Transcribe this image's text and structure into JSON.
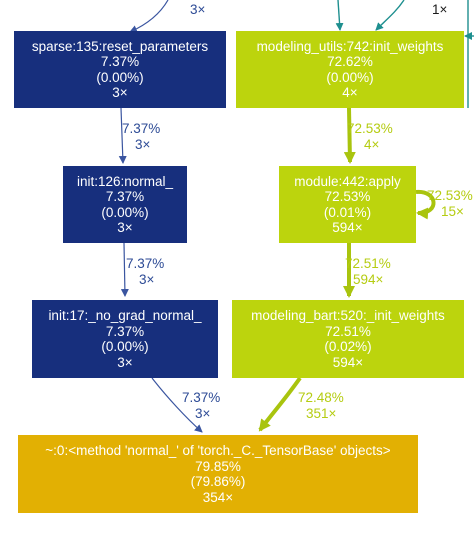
{
  "colors": {
    "navy": "#172f7d",
    "navy_edge": "#3a55a0",
    "lime": "#bcd40d",
    "lime_edge": "#a9c40e",
    "gold": "#e2b003",
    "teal": "#1e8f8f",
    "lime_text": "#b5cc11",
    "navy_text": "#2c4a95"
  },
  "top_label": "3×",
  "top_right_label": "1×",
  "nodes": {
    "reset_parameters": {
      "func": "sparse:135:reset_parameters",
      "total": "7.37%",
      "self": "(0.00%)",
      "calls": "3×"
    },
    "init_weights_utils": {
      "func": "modeling_utils:742:init_weights",
      "total": "72.62%",
      "self": "(0.00%)",
      "calls": "4×"
    },
    "init_normal": {
      "func": "init:126:normal_",
      "total": "7.37%",
      "self": "(0.00%)",
      "calls": "3×"
    },
    "module_apply": {
      "func": "module:442:apply",
      "total": "72.53%",
      "self": "(0.01%)",
      "calls": "594×"
    },
    "no_grad_normal": {
      "func": "init:17:_no_grad_normal_",
      "total": "7.37%",
      "self": "(0.00%)",
      "calls": "3×"
    },
    "init_weights_bart": {
      "func": "modeling_bart:520:_init_weights",
      "total": "72.51%",
      "self": "(0.02%)",
      "calls": "594×"
    },
    "tensor_normal": {
      "func": "~:0:<method 'normal_' of 'torch._C._TensorBase' objects>",
      "total": "79.85%",
      "self": "(79.86%)",
      "calls": "354×"
    }
  },
  "edges": {
    "reset_to_init": {
      "pct": "7.37%",
      "calls": "3×"
    },
    "init_to_nograd": {
      "pct": "7.37%",
      "calls": "3×"
    },
    "nograd_to_tensor": {
      "pct": "7.37%",
      "calls": "3×"
    },
    "utils_to_apply": {
      "pct": "72.53%",
      "calls": "4×"
    },
    "apply_self": {
      "pct": "72.53%",
      "calls": "15×"
    },
    "apply_to_bart": {
      "pct": "72.51%",
      "calls": "594×"
    },
    "bart_to_tensor": {
      "pct": "72.48%",
      "calls": "351×"
    }
  }
}
